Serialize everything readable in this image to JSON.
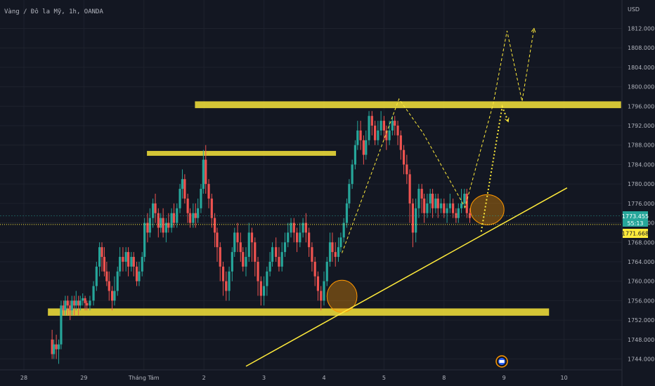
{
  "chart_data": {
    "type": "candlestick",
    "title": "Vàng / Đô la Mỹ, 1h, OANDA",
    "currency": "USD",
    "price_axis": {
      "min": 1742,
      "max": 1814,
      "ticks": [
        1744,
        1748,
        1752,
        1756,
        1760,
        1764,
        1768,
        1772,
        1776,
        1780,
        1784,
        1788,
        1792,
        1796,
        1800,
        1804,
        1808,
        1812
      ],
      "tick_labels": [
        "1744.000",
        "1748.000",
        "1752.000",
        "1756.000",
        "1760.000",
        "1764.000",
        "1768.000",
        "1772.000",
        "1776.000",
        "1780.000",
        "1784.000",
        "1788.000",
        "1792.000",
        "1796.000",
        "1800.000",
        "1804.000",
        "1808.000",
        "1812.000"
      ]
    },
    "date_axis": {
      "labels": [
        "28",
        "29",
        "Tháng Tám",
        "2",
        "3",
        "4",
        "5",
        "8",
        "9",
        "10"
      ],
      "day_index": [
        0,
        1,
        2,
        3,
        4,
        5,
        6,
        7,
        8,
        9
      ]
    },
    "last_price": {
      "value": 1773.455,
      "label": "1773.455",
      "countdown": "55:13",
      "color": "#26a69a"
    },
    "reference_price": {
      "value": 1771.668,
      "label": "1771.668",
      "color": "#ffeb3b"
    },
    "zones": [
      {
        "from_day": 2.85,
        "to_day": 9.95,
        "low": 1795.6,
        "high": 1797.0
      },
      {
        "from_day": 2.05,
        "to_day": 5.2,
        "low": 1785.8,
        "high": 1786.8
      },
      {
        "from_day": 0.4,
        "to_day": 8.75,
        "low": 1752.9,
        "high": 1754.4
      }
    ],
    "trendline": {
      "from": [
        3.7,
        1742.5
      ],
      "to": [
        9.05,
        1779.2
      ]
    },
    "ellipses": [
      {
        "day": 5.3,
        "price": 1756.9,
        "rx_days": 0.25,
        "ry_price": 3.3
      },
      {
        "day": 7.72,
        "price": 1774.7,
        "rx_days": 0.28,
        "ry_price": 3.1
      }
    ],
    "projections": [
      {
        "style": "dashed",
        "points": [
          [
            5.3,
            1765.8
          ],
          [
            6.25,
            1797.5
          ],
          [
            6.65,
            1790.5
          ],
          [
            7.35,
            1775.2
          ],
          [
            7.82,
            1796.5
          ],
          [
            8.05,
            1811.5
          ],
          [
            8.3,
            1797.0
          ],
          [
            8.5,
            1812.0
          ]
        ]
      },
      {
        "style": "dotted",
        "points": [
          [
            7.62,
            1770.2
          ],
          [
            7.97,
            1795.9
          ],
          [
            8.07,
            1792.8
          ]
        ]
      }
    ],
    "candles": [
      [
        0.47,
        1748,
        1745,
        1750,
        1744
      ],
      [
        0.5,
        1745,
        1747,
        1748,
        1744
      ],
      [
        0.54,
        1747,
        1746,
        1749,
        1744
      ],
      [
        0.58,
        1746,
        1747,
        1748,
        1743
      ],
      [
        0.62,
        1747,
        1755,
        1756,
        1746
      ],
      [
        0.66,
        1755,
        1754,
        1756,
        1753
      ],
      [
        0.69,
        1754,
        1756,
        1757,
        1753
      ],
      [
        0.73,
        1756,
        1755,
        1757,
        1753
      ],
      [
        0.77,
        1755,
        1754,
        1756,
        1752
      ],
      [
        0.8,
        1754,
        1756,
        1757,
        1753
      ],
      [
        0.84,
        1756,
        1755,
        1757,
        1753
      ],
      [
        0.87,
        1755,
        1756,
        1758,
        1754
      ],
      [
        0.91,
        1756,
        1755,
        1757,
        1753
      ],
      [
        0.94,
        1755,
        1756,
        1757,
        1754
      ],
      [
        0.98,
        1756,
        1756.5,
        1757.5,
        1755
      ],
      [
        1.02,
        1756.5,
        1755.5,
        1757,
        1754
      ],
      [
        1.05,
        1755.5,
        1755,
        1756,
        1754
      ],
      [
        1.1,
        1755,
        1756,
        1757,
        1754
      ],
      [
        1.16,
        1756,
        1759,
        1760,
        1755
      ],
      [
        1.21,
        1759,
        1763,
        1764,
        1758
      ],
      [
        1.26,
        1763,
        1767,
        1768,
        1761
      ],
      [
        1.3,
        1767,
        1765,
        1768,
        1762
      ],
      [
        1.34,
        1765,
        1762,
        1767,
        1761
      ],
      [
        1.38,
        1762,
        1760,
        1764,
        1759
      ],
      [
        1.42,
        1760,
        1758,
        1762,
        1756
      ],
      [
        1.47,
        1758,
        1756,
        1759,
        1754
      ],
      [
        1.51,
        1756,
        1758,
        1761,
        1755
      ],
      [
        1.56,
        1758,
        1762,
        1763,
        1757
      ],
      [
        1.6,
        1762,
        1765,
        1767,
        1761
      ],
      [
        1.65,
        1765,
        1764,
        1767,
        1762
      ],
      [
        1.7,
        1764,
        1766,
        1767,
        1762
      ],
      [
        1.74,
        1766,
        1763,
        1767,
        1761
      ],
      [
        1.79,
        1763,
        1765,
        1766,
        1762
      ],
      [
        1.83,
        1765,
        1763,
        1766,
        1761
      ],
      [
        1.88,
        1763,
        1760,
        1764,
        1759
      ],
      [
        1.92,
        1760,
        1762,
        1764,
        1759
      ],
      [
        1.97,
        1762,
        1765,
        1766,
        1761
      ],
      [
        2.01,
        1765,
        1772,
        1773,
        1764
      ],
      [
        2.06,
        1772,
        1770,
        1774,
        1768
      ],
      [
        2.1,
        1770,
        1773,
        1775,
        1769
      ],
      [
        2.15,
        1773,
        1776,
        1777,
        1771
      ],
      [
        2.19,
        1776,
        1774,
        1778,
        1772
      ],
      [
        2.24,
        1774,
        1771,
        1775,
        1769
      ],
      [
        2.28,
        1771,
        1773,
        1774,
        1770
      ],
      [
        2.32,
        1773,
        1770,
        1775,
        1769
      ],
      [
        2.37,
        1770,
        1772,
        1773,
        1768
      ],
      [
        2.41,
        1772,
        1771,
        1774,
        1770
      ],
      [
        2.46,
        1771,
        1774,
        1775,
        1770
      ],
      [
        2.5,
        1774,
        1772,
        1776,
        1771
      ],
      [
        2.55,
        1772,
        1775,
        1776,
        1771
      ],
      [
        2.6,
        1775,
        1779,
        1780,
        1774
      ],
      [
        2.64,
        1779,
        1781,
        1783,
        1777
      ],
      [
        2.68,
        1781,
        1777,
        1782,
        1776
      ],
      [
        2.73,
        1777,
        1774,
        1778,
        1772
      ],
      [
        2.77,
        1774,
        1772,
        1775,
        1771
      ],
      [
        2.82,
        1772,
        1774,
        1776,
        1771
      ],
      [
        2.86,
        1774,
        1773,
        1776,
        1771
      ],
      [
        2.9,
        1773,
        1775,
        1777,
        1772
      ],
      [
        2.95,
        1775,
        1779,
        1780,
        1774
      ],
      [
        2.99,
        1779,
        1785,
        1787,
        1778
      ],
      [
        3.03,
        1785,
        1780,
        1788,
        1778
      ],
      [
        3.08,
        1780,
        1777,
        1781,
        1775
      ],
      [
        3.13,
        1777,
        1773,
        1778,
        1771
      ],
      [
        3.18,
        1773,
        1770,
        1774,
        1767
      ],
      [
        3.22,
        1770,
        1767,
        1771,
        1764
      ],
      [
        3.27,
        1767,
        1763,
        1768,
        1760
      ],
      [
        3.32,
        1763,
        1760,
        1764,
        1757
      ],
      [
        3.37,
        1760,
        1758,
        1762,
        1756
      ],
      [
        3.42,
        1758,
        1762,
        1763,
        1756
      ],
      [
        3.47,
        1762,
        1766,
        1767,
        1760
      ],
      [
        3.51,
        1766,
        1770,
        1771,
        1765
      ],
      [
        3.56,
        1770,
        1768,
        1772,
        1766
      ],
      [
        3.61,
        1768,
        1766,
        1770,
        1764
      ],
      [
        3.65,
        1766,
        1763,
        1767,
        1762
      ],
      [
        3.7,
        1763,
        1765,
        1767,
        1761
      ],
      [
        3.75,
        1765,
        1770,
        1772,
        1764
      ],
      [
        3.8,
        1770,
        1768,
        1771,
        1764
      ],
      [
        3.85,
        1768,
        1764,
        1769,
        1761
      ],
      [
        3.9,
        1764,
        1760,
        1765,
        1757
      ],
      [
        3.95,
        1760,
        1757,
        1761,
        1755
      ],
      [
        4.0,
        1757,
        1759,
        1761,
        1755
      ],
      [
        4.05,
        1759,
        1762,
        1763,
        1757
      ],
      [
        4.1,
        1762,
        1764,
        1766,
        1761
      ],
      [
        4.14,
        1764,
        1767,
        1768,
        1763
      ],
      [
        4.2,
        1767,
        1765,
        1769,
        1764
      ],
      [
        4.25,
        1765,
        1763,
        1767,
        1762
      ],
      [
        4.3,
        1763,
        1766,
        1768,
        1762
      ],
      [
        4.35,
        1766,
        1768,
        1770,
        1765
      ],
      [
        4.4,
        1768,
        1770,
        1772,
        1767
      ],
      [
        4.45,
        1770,
        1772,
        1773,
        1769
      ],
      [
        4.5,
        1772,
        1770,
        1773,
        1768
      ],
      [
        4.55,
        1770,
        1768,
        1771,
        1766
      ],
      [
        4.6,
        1768,
        1770,
        1772,
        1767
      ],
      [
        4.65,
        1770,
        1772,
        1773,
        1769
      ],
      [
        4.7,
        1772,
        1770,
        1774,
        1768
      ],
      [
        4.75,
        1770,
        1767,
        1771,
        1765
      ],
      [
        4.8,
        1767,
        1764,
        1768,
        1762
      ],
      [
        4.85,
        1764,
        1761,
        1765,
        1759
      ],
      [
        4.9,
        1761,
        1758,
        1762,
        1756
      ],
      [
        4.95,
        1758,
        1756,
        1759,
        1754
      ],
      [
        5.0,
        1756,
        1760,
        1762,
        1755
      ],
      [
        5.05,
        1760,
        1764,
        1765,
        1759
      ],
      [
        5.1,
        1764,
        1768,
        1770,
        1763
      ],
      [
        5.14,
        1768,
        1766,
        1770,
        1764
      ],
      [
        5.19,
        1766,
        1765,
        1768,
        1763
      ],
      [
        5.24,
        1765,
        1767,
        1769,
        1764
      ],
      [
        5.28,
        1767,
        1769,
        1770,
        1766
      ],
      [
        5.33,
        1769,
        1772,
        1773,
        1768
      ],
      [
        5.38,
        1772,
        1776,
        1777,
        1771
      ],
      [
        5.42,
        1776,
        1780,
        1781,
        1775
      ],
      [
        5.47,
        1780,
        1784,
        1785,
        1779
      ],
      [
        5.52,
        1784,
        1788,
        1789,
        1783
      ],
      [
        5.56,
        1788,
        1791,
        1793,
        1787
      ],
      [
        5.61,
        1791,
        1789,
        1793,
        1787
      ],
      [
        5.66,
        1789,
        1786,
        1790,
        1784
      ],
      [
        5.7,
        1786,
        1789,
        1791,
        1785
      ],
      [
        5.75,
        1789,
        1794,
        1795,
        1788
      ],
      [
        5.8,
        1794,
        1792,
        1795,
        1790
      ],
      [
        5.85,
        1792,
        1789,
        1793,
        1788
      ],
      [
        5.9,
        1789,
        1791,
        1793,
        1788
      ],
      [
        5.95,
        1791,
        1793,
        1795,
        1790
      ],
      [
        6.0,
        1793,
        1791,
        1794,
        1789
      ],
      [
        6.04,
        1791,
        1789,
        1792,
        1787
      ],
      [
        6.09,
        1789,
        1791,
        1793,
        1788
      ],
      [
        6.14,
        1791,
        1793,
        1794,
        1790
      ],
      [
        6.18,
        1793,
        1792,
        1794,
        1790
      ],
      [
        6.23,
        1792,
        1790,
        1793,
        1788
      ],
      [
        6.28,
        1790,
        1787,
        1791,
        1785
      ],
      [
        6.33,
        1787,
        1784,
        1788,
        1782
      ],
      [
        6.38,
        1784,
        1782,
        1786,
        1780
      ],
      [
        6.43,
        1782,
        1776,
        1783,
        1772
      ],
      [
        6.48,
        1776,
        1770,
        1777,
        1767
      ],
      [
        6.53,
        1770,
        1775,
        1777,
        1768
      ],
      [
        6.58,
        1775,
        1779,
        1780,
        1773
      ],
      [
        6.63,
        1779,
        1777,
        1780,
        1774
      ],
      [
        6.67,
        1777,
        1774,
        1778,
        1772
      ],
      [
        6.72,
        1774,
        1776,
        1778,
        1773
      ],
      [
        6.77,
        1776,
        1778,
        1779,
        1774
      ],
      [
        6.81,
        1778,
        1775,
        1779,
        1773
      ],
      [
        6.86,
        1775,
        1777,
        1778,
        1774
      ],
      [
        6.9,
        1777,
        1775,
        1778,
        1773
      ],
      [
        6.95,
        1775,
        1776,
        1777,
        1774
      ],
      [
        7.0,
        1776,
        1774,
        1777,
        1773
      ],
      [
        7.05,
        1774,
        1775,
        1776,
        1772
      ],
      [
        7.1,
        1775,
        1776,
        1778,
        1774
      ],
      [
        7.15,
        1776,
        1774,
        1777,
        1773
      ],
      [
        7.2,
        1774,
        1773,
        1775,
        1772
      ],
      [
        7.24,
        1773,
        1775,
        1776,
        1772
      ],
      [
        7.29,
        1775,
        1776,
        1779,
        1774
      ],
      [
        7.34,
        1776,
        1778,
        1779,
        1775
      ],
      [
        7.38,
        1778,
        1774,
        1779,
        1773
      ],
      [
        7.43,
        1774,
        1773,
        1775,
        1772
      ]
    ]
  }
}
